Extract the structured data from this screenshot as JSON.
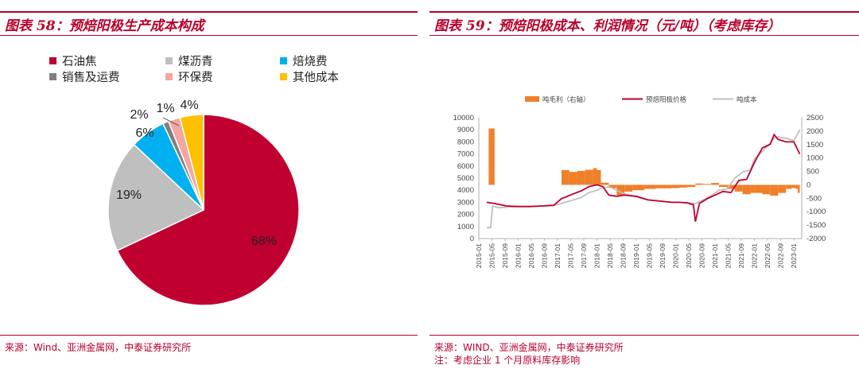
{
  "left": {
    "title": "图表 58：预焙阳极生产成本构成",
    "source": "来源：Wind、亚洲金属网，中泰证券研究所"
  },
  "right": {
    "title": "图表 59：预焙阳极成本、利润情况（元/吨）（考虑库存）",
    "source": "来源：WIND、亚洲金属网，中泰证券研究所",
    "note": "注：考虑企业 1 个月原料库存影响"
  },
  "colors": {
    "accent": "#b8002c",
    "petcoke": "#c00030",
    "pitch": "#bfbfbf",
    "fuel": "#00b0f0",
    "sales": "#7f7f7f",
    "env": "#f4a7a0",
    "other": "#ffc000",
    "margin_bar": "#f07f2a",
    "price_line": "#c00030",
    "cost_line": "#bfbfbf"
  },
  "chart_data": [
    {
      "type": "pie",
      "title": "",
      "legend_position": "top",
      "slices": [
        {
          "label": "石油焦",
          "value": 68,
          "display": "68%",
          "color": "#c00030"
        },
        {
          "label": "煤沥青",
          "value": 19,
          "display": "19%",
          "color": "#bfbfbf"
        },
        {
          "label": "焙烧费",
          "value": 6,
          "display": "6%",
          "color": "#00b0f0"
        },
        {
          "label": "销售及运费",
          "value": 1,
          "display": "1%",
          "color": "#7f7f7f"
        },
        {
          "label": "环保费",
          "value": 2,
          "display": "2%",
          "color": "#f4a7a0"
        },
        {
          "label": "其他成本",
          "value": 4,
          "display": "4%",
          "color": "#ffc000"
        }
      ]
    },
    {
      "type": "line",
      "title": "",
      "legend_position": "top",
      "x_ticks": [
        "2015-01",
        "2015-05",
        "2015-09",
        "2016-01",
        "2016-05",
        "2016-09",
        "2017-01",
        "2017-05",
        "2017-09",
        "2018-01",
        "2018-05",
        "2018-09",
        "2019-01",
        "2019-05",
        "2019-09",
        "2020-01",
        "2020-05",
        "2020-09",
        "2021-01",
        "2021-05",
        "2021-09",
        "2022-01",
        "2022-05",
        "2022-09",
        "2023-01"
      ],
      "y_left": {
        "ticks": [
          0,
          1000,
          2000,
          3000,
          4000,
          5000,
          6000,
          7000,
          8000,
          9000,
          10000
        ],
        "ylim": [
          0,
          10000
        ]
      },
      "y_right": {
        "ticks": [
          -2000,
          -1500,
          -1000,
          -500,
          0,
          500,
          1000,
          1500,
          2000,
          2500
        ],
        "ylim": [
          -2000,
          2500
        ]
      },
      "series": [
        {
          "name": "吨毛利（右轴）",
          "type": "bar",
          "axis": "right",
          "x": [
            2015.25,
            2015.3,
            2015.4,
            2015.5,
            2015.7,
            2016.0,
            2016.5,
            2016.9,
            2017.1,
            2017.3,
            2017.5,
            2017.7,
            2017.9,
            2018.0,
            2018.1,
            2018.3,
            2018.5,
            2018.7,
            2018.9,
            2019.2,
            2019.5,
            2019.9,
            2020.1,
            2020.3,
            2020.5,
            2020.7,
            2020.9,
            2021.1,
            2021.3,
            2021.5,
            2021.7,
            2021.9,
            2022.0,
            2022.2,
            2022.4,
            2022.6,
            2022.8,
            2022.95,
            2023.05,
            2023.1,
            2023.15
          ],
          "values": [
            2100,
            2100,
            0,
            0,
            0,
            0,
            0,
            0,
            550,
            480,
            520,
            560,
            620,
            550,
            80,
            -120,
            -380,
            -250,
            -200,
            -150,
            -130,
            -120,
            -100,
            -80,
            50,
            30,
            70,
            -80,
            -150,
            -250,
            -350,
            -300,
            -300,
            -350,
            -400,
            -300,
            -150,
            -120,
            -150,
            -300,
            -350
          ]
        },
        {
          "name": "预焙阳极价格",
          "type": "line",
          "axis": "left",
          "x": [
            2015.2,
            2015.4,
            2015.7,
            2016.0,
            2016.3,
            2016.6,
            2016.9,
            2017.1,
            2017.4,
            2017.6,
            2017.8,
            2018.0,
            2018.15,
            2018.3,
            2018.5,
            2018.7,
            2019.0,
            2019.3,
            2019.6,
            2019.9,
            2020.1,
            2020.3,
            2020.45,
            2020.5,
            2020.6,
            2020.8,
            2021.0,
            2021.2,
            2021.4,
            2021.6,
            2021.8,
            2022.0,
            2022.2,
            2022.4,
            2022.5,
            2022.6,
            2022.8,
            2023.0,
            2023.15
          ],
          "values": [
            3000,
            2900,
            2700,
            2650,
            2650,
            2700,
            2750,
            3300,
            3700,
            3950,
            4300,
            4450,
            4300,
            3600,
            3500,
            3600,
            3500,
            3200,
            3100,
            3000,
            3000,
            2950,
            2800,
            1400,
            2900,
            3300,
            3600,
            3900,
            3800,
            4800,
            4900,
            6300,
            7500,
            7800,
            8600,
            8200,
            8000,
            8000,
            7000
          ]
        },
        {
          "name": "吨成本",
          "type": "line",
          "axis": "left",
          "x": [
            2015.2,
            2015.3,
            2015.35,
            2015.5,
            2015.7,
            2016.0,
            2016.3,
            2016.6,
            2016.9,
            2017.1,
            2017.4,
            2017.6,
            2017.8,
            2018.0,
            2018.15,
            2018.3,
            2018.5,
            2018.7,
            2019.0,
            2019.3,
            2019.6,
            2019.9,
            2020.1,
            2020.3,
            2020.5,
            2020.7,
            2020.9,
            2021.1,
            2021.3,
            2021.5,
            2021.7,
            2021.9,
            2022.0,
            2022.2,
            2022.4,
            2022.5,
            2022.6,
            2022.8,
            2023.0,
            2023.15
          ],
          "values": [
            900,
            900,
            2700,
            2550,
            2600,
            2650,
            2650,
            2700,
            2750,
            2900,
            3200,
            3400,
            3800,
            4000,
            4200,
            4300,
            4000,
            3700,
            3450,
            3200,
            3100,
            3000,
            3000,
            2950,
            2900,
            3200,
            3550,
            4000,
            4100,
            5000,
            5500,
            5700,
            6600,
            7200,
            7900,
            8300,
            8400,
            8300,
            8100,
            9000
          ]
        }
      ]
    }
  ]
}
